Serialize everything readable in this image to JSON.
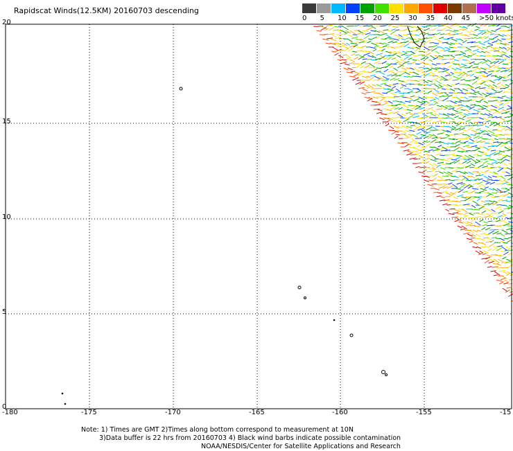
{
  "title": "Rapidscat Winds(12.5KM) 20160703 descending",
  "legend": {
    "colors": [
      "#3a3a3a",
      "#9a9a9a",
      "#00b8ff",
      "#0040ff",
      "#00a000",
      "#40e000",
      "#ffe000",
      "#ffa800",
      "#ff5000",
      "#e00000",
      "#7a3a00",
      "#b07050",
      "#c000ff",
      "#6000a0"
    ],
    "labels": [
      "0",
      "5",
      "10",
      "15",
      "20",
      "25",
      "30",
      "35",
      "40",
      "45",
      ">50 knots"
    ]
  },
  "axes": {
    "x_ticks": [
      "-180",
      "-175",
      "-170",
      "-165",
      "-160",
      "-155",
      "-15"
    ],
    "y_ticks": [
      "0",
      "5",
      "10",
      "15",
      "20"
    ]
  },
  "notes": {
    "line1": "Note: 1) Times are GMT 2)Times along bottom correspond to measurement at 10N",
    "line2": "3)Data buffer is 22 hrs from 20160703 4) Black wind barbs indicate possible contamination",
    "line3": "NOAA/NESDIS/Center for Satellite Applications and Research"
  }
}
